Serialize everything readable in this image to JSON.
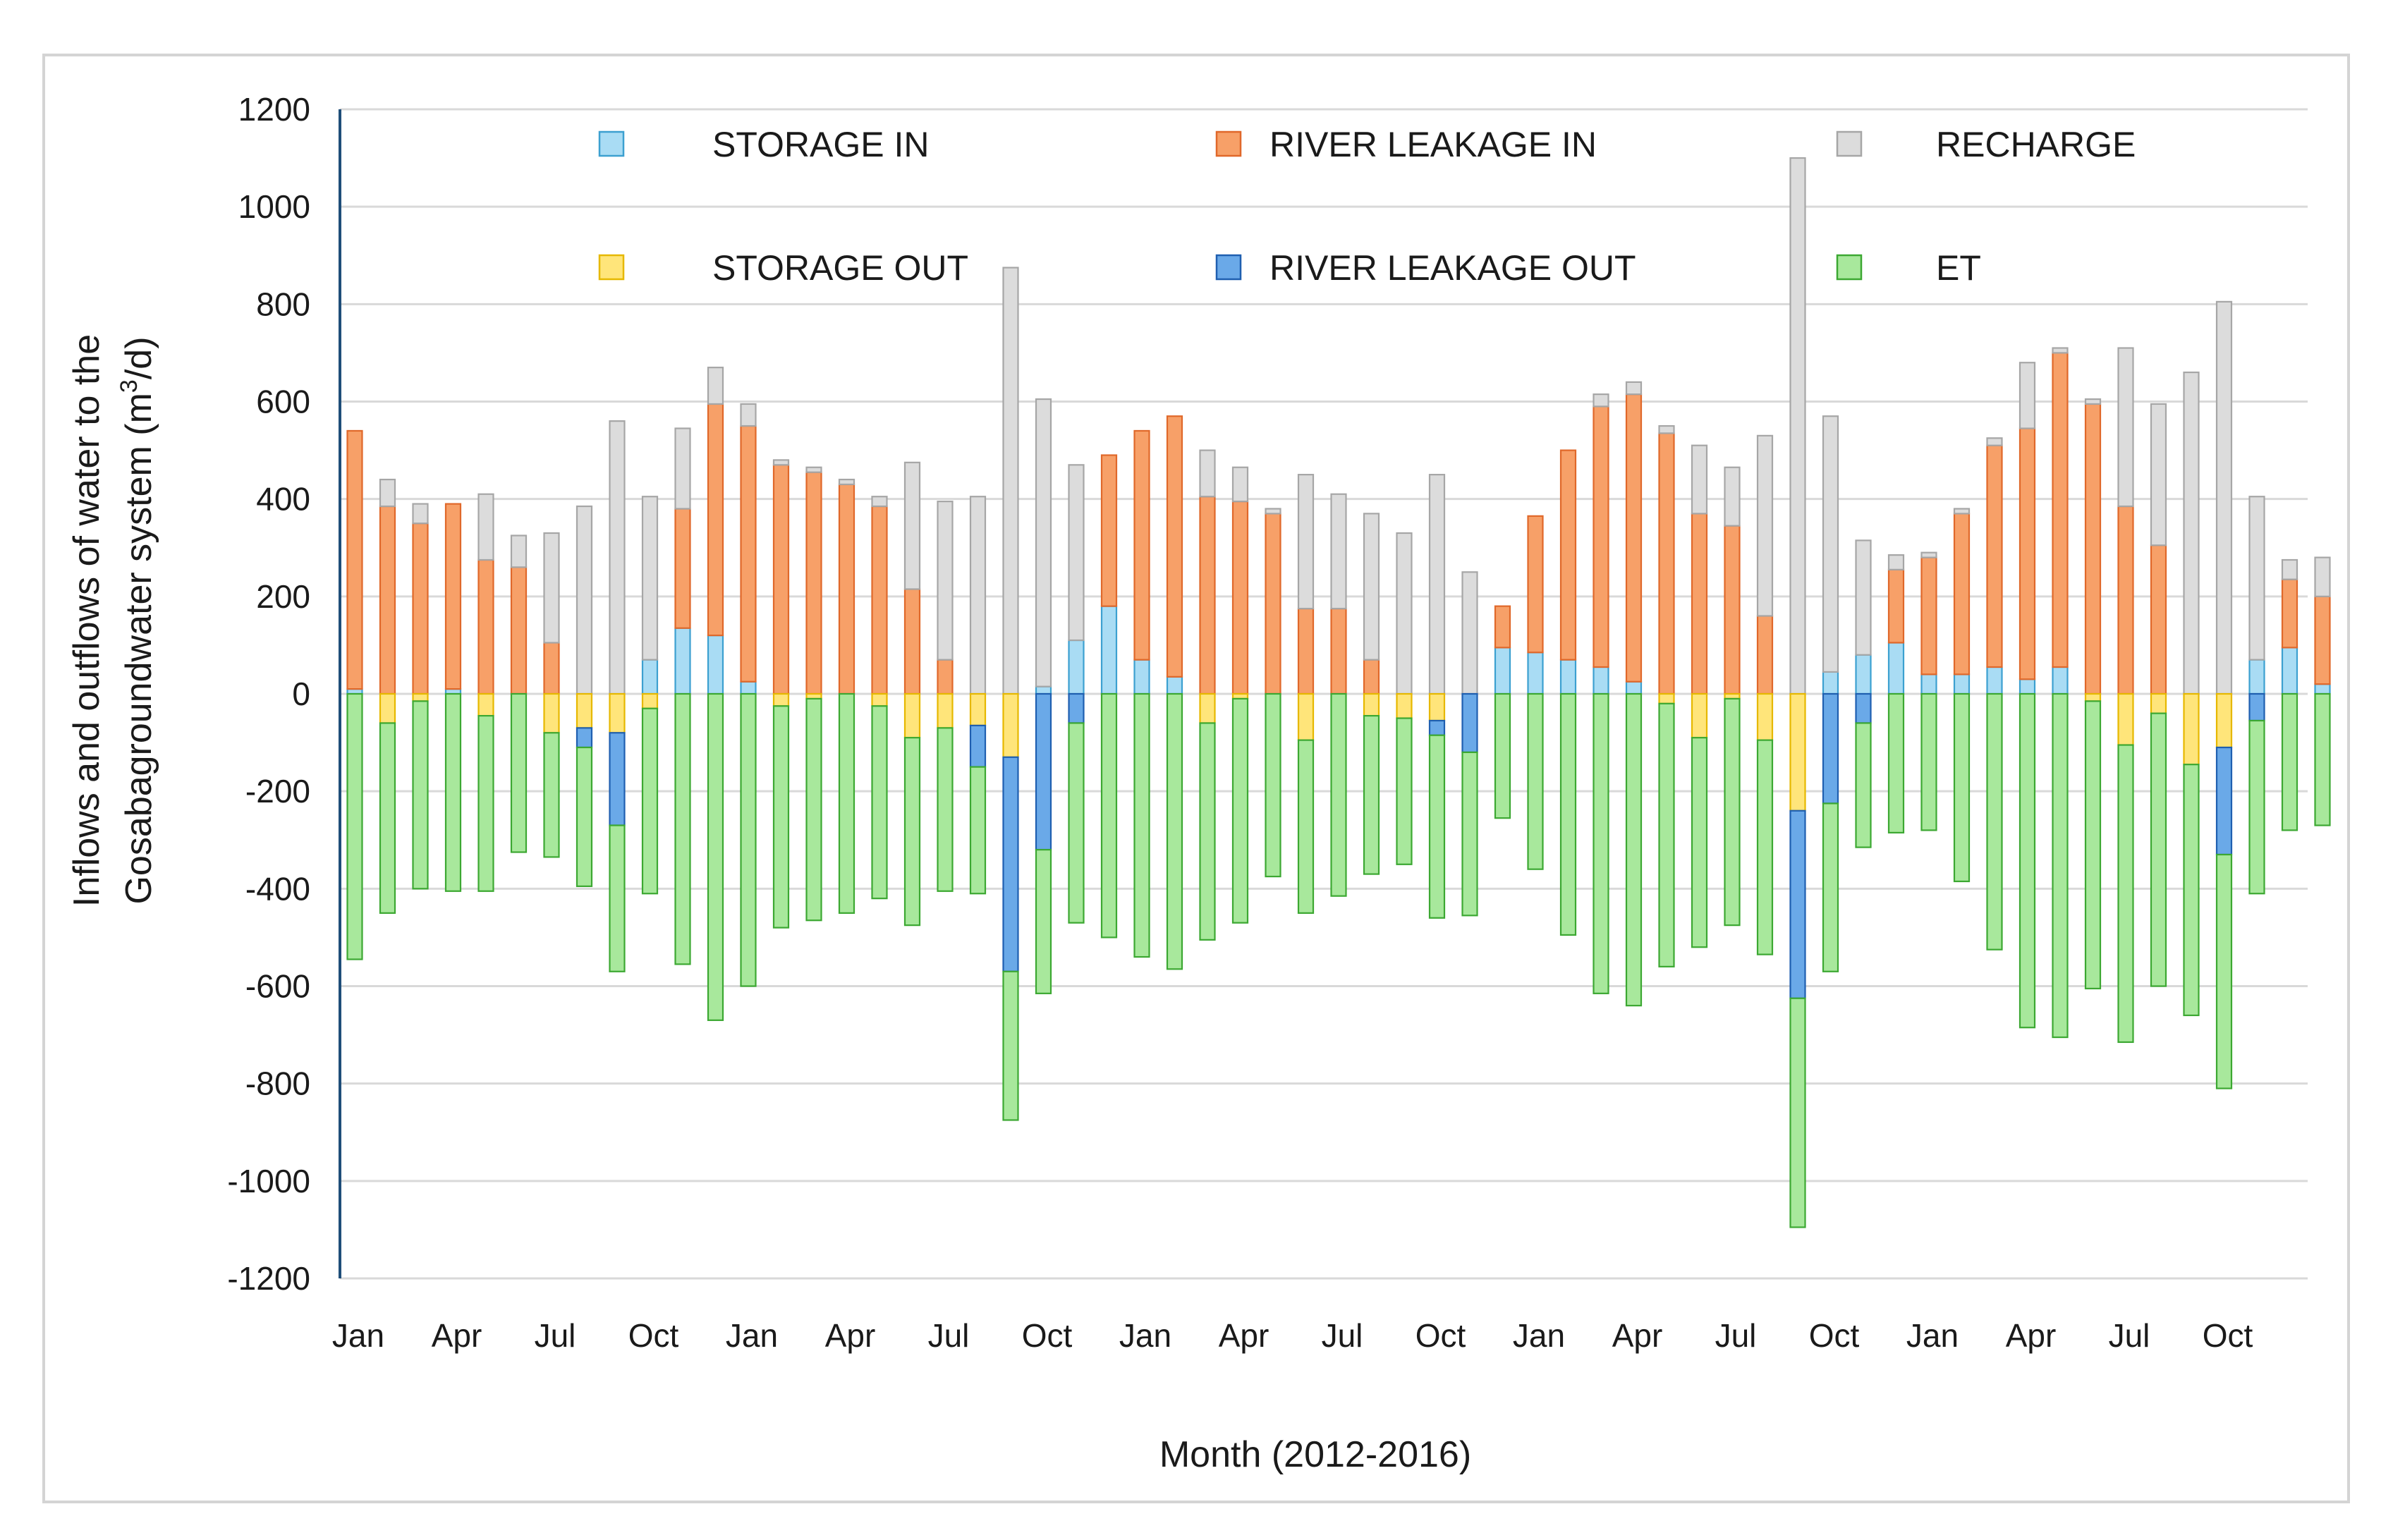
{
  "chart_data": {
    "type": "bar",
    "stacked": true,
    "xlabel": "Month (2012-2016)",
    "ylabel_line1": "Inflows and outflows of water to the",
    "ylabel_line2_prefix": "Gosabagroundwater system (m",
    "ylabel_line2_sup": "3",
    "ylabel_line2_suffix": "/d)",
    "ylim": [
      -1200,
      1200
    ],
    "yticks": [
      1200,
      1000,
      800,
      600,
      400,
      200,
      0,
      -200,
      -400,
      -600,
      -800,
      -1000,
      -1200
    ],
    "xtick_labels": [
      "Jan",
      "Apr",
      "Jul",
      "Oct",
      "Jan",
      "Apr",
      "Jul",
      "Oct",
      "Jan",
      "Apr",
      "Jul",
      "Oct",
      "Jan",
      "Apr",
      "Jul",
      "Oct",
      "Jan",
      "Apr",
      "Jul",
      "Oct"
    ],
    "xtick_month_index": [
      0,
      3,
      6,
      9,
      12,
      15,
      18,
      21,
      24,
      27,
      30,
      33,
      36,
      39,
      42,
      45,
      48,
      51,
      54,
      57
    ],
    "legend_position": "top",
    "series": [
      {
        "name": "STORAGE IN",
        "key": "storage_in",
        "color": "#a9dcf4",
        "edge": "#3ca0d0",
        "values": [
          10,
          0,
          0,
          10,
          0,
          0,
          0,
          0,
          0,
          70,
          135,
          120,
          25,
          0,
          0,
          0,
          0,
          0,
          0,
          0,
          0,
          15,
          110,
          180,
          70,
          35,
          0,
          0,
          0,
          0,
          0,
          0,
          0,
          0,
          0,
          95,
          85,
          70,
          55,
          25,
          0,
          0,
          0,
          0,
          0,
          45,
          80,
          105,
          40,
          40,
          55,
          30,
          55,
          0,
          0,
          0,
          0,
          0,
          70,
          95,
          20
        ]
      },
      {
        "name": "RIVER LEAKAGE IN",
        "key": "river_in",
        "color": "#f7a068",
        "edge": "#e0682a",
        "values": [
          530,
          385,
          350,
          380,
          275,
          260,
          105,
          0,
          0,
          0,
          245,
          475,
          525,
          470,
          455,
          430,
          385,
          215,
          70,
          0,
          0,
          0,
          0,
          310,
          470,
          535,
          405,
          395,
          370,
          175,
          175,
          70,
          0,
          0,
          0,
          85,
          280,
          430,
          535,
          590,
          535,
          370,
          345,
          160,
          0,
          0,
          0,
          150,
          240,
          330,
          455,
          515,
          645,
          595,
          385,
          305,
          0,
          0,
          0,
          140,
          180
        ]
      },
      {
        "name": "RECHARGE",
        "key": "recharge",
        "color": "#dcdcdc",
        "edge": "#a6a6a6",
        "values": [
          0,
          55,
          40,
          0,
          135,
          65,
          225,
          385,
          560,
          335,
          165,
          75,
          45,
          10,
          10,
          10,
          20,
          260,
          325,
          405,
          875,
          590,
          360,
          0,
          0,
          0,
          95,
          70,
          10,
          275,
          235,
          300,
          330,
          450,
          250,
          0,
          0,
          0,
          25,
          25,
          15,
          140,
          120,
          370,
          1100,
          525,
          235,
          30,
          10,
          10,
          15,
          135,
          10,
          10,
          325,
          290,
          660,
          805,
          335,
          40,
          80
        ]
      },
      {
        "name": "STORAGE OUT",
        "key": "storage_out",
        "color": "#ffe57a",
        "edge": "#e6b800",
        "values": [
          0,
          -60,
          -15,
          0,
          -45,
          0,
          -80,
          -70,
          -80,
          -30,
          0,
          0,
          0,
          -25,
          -10,
          0,
          -25,
          -90,
          -70,
          -65,
          -130,
          0,
          0,
          0,
          0,
          0,
          -60,
          -10,
          0,
          -95,
          0,
          -45,
          -50,
          -55,
          0,
          0,
          0,
          0,
          0,
          0,
          -20,
          -90,
          -10,
          -95,
          -240,
          0,
          0,
          0,
          0,
          0,
          0,
          0,
          0,
          -15,
          -105,
          -40,
          -145,
          -110,
          0,
          0,
          0
        ]
      },
      {
        "name": "RIVER LEAKAGE OUT",
        "key": "river_out",
        "color": "#6aa9e8",
        "edge": "#1f5fb0",
        "values": [
          0,
          0,
          0,
          0,
          0,
          0,
          0,
          -40,
          -190,
          0,
          0,
          0,
          0,
          0,
          0,
          0,
          0,
          0,
          0,
          -85,
          -440,
          -320,
          -60,
          0,
          0,
          0,
          0,
          0,
          0,
          0,
          0,
          0,
          0,
          -30,
          -120,
          0,
          0,
          0,
          0,
          0,
          0,
          0,
          0,
          0,
          -385,
          -225,
          -60,
          0,
          0,
          0,
          0,
          0,
          0,
          0,
          0,
          0,
          0,
          -220,
          -55,
          0,
          0
        ]
      },
      {
        "name": "ET",
        "key": "et",
        "color": "#a8e89c",
        "edge": "#3ca832",
        "values": [
          -545,
          -390,
          -385,
          -405,
          -360,
          -325,
          -255,
          -285,
          -300,
          -380,
          -555,
          -670,
          -600,
          -455,
          -455,
          -450,
          -395,
          -385,
          -335,
          -260,
          -305,
          -295,
          -410,
          -500,
          -540,
          -565,
          -445,
          -460,
          -375,
          -355,
          -415,
          -325,
          -300,
          -375,
          -335,
          -255,
          -360,
          -495,
          -615,
          -640,
          -540,
          -430,
          -465,
          -440,
          -470,
          -345,
          -255,
          -285,
          -280,
          -385,
          -525,
          -685,
          -705,
          -590,
          -610,
          -560,
          -515,
          -480,
          -355,
          -280,
          -270
        ]
      }
    ]
  }
}
